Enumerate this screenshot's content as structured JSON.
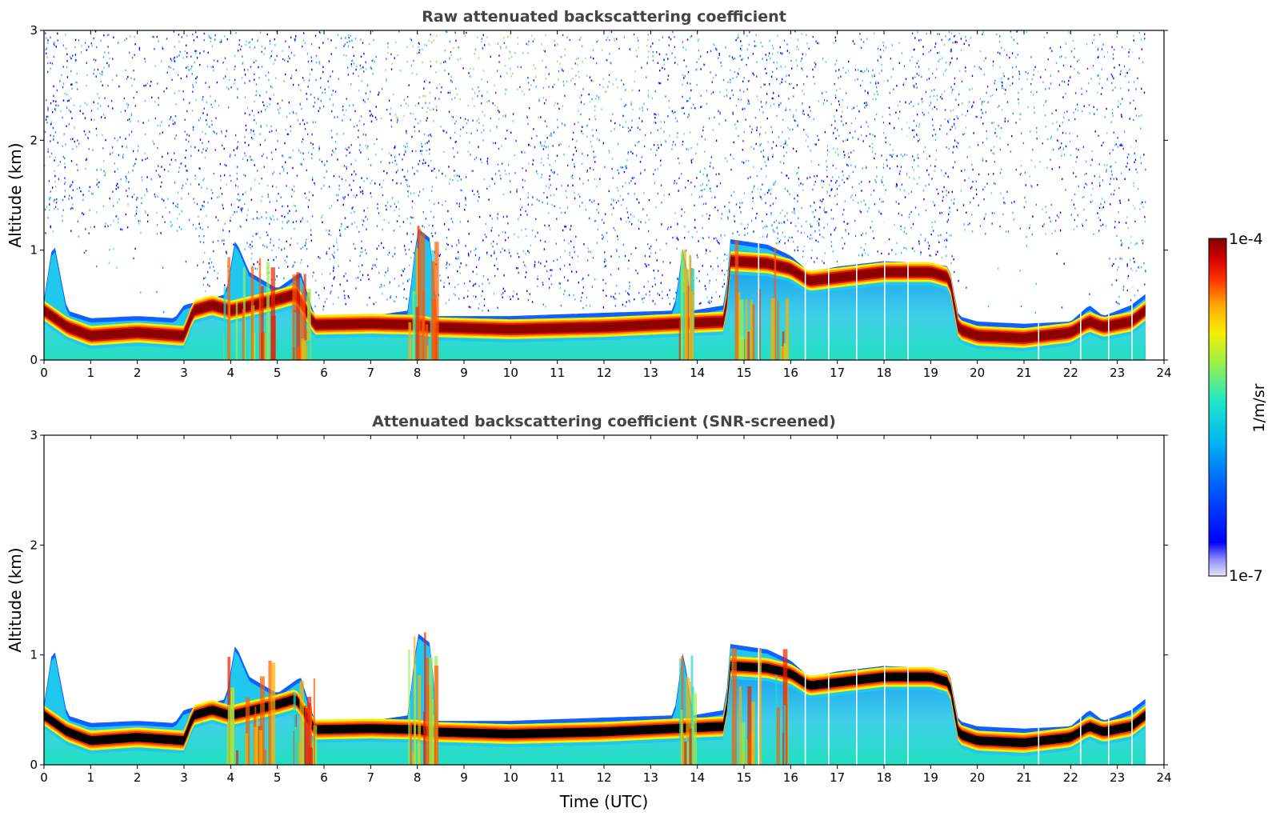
{
  "chart_data": [
    {
      "type": "heatmap",
      "title": "Raw attenuated backscattering coefficient",
      "xlabel": "",
      "ylabel": "Altitude (km)",
      "xlim": [
        0,
        24
      ],
      "ylim": [
        0,
        3
      ],
      "x_ticks": [
        "0",
        "1",
        "2",
        "3",
        "4",
        "5",
        "6",
        "7",
        "8",
        "9",
        "10",
        "11",
        "12",
        "13",
        "14",
        "15",
        "16",
        "17",
        "18",
        "19",
        "20",
        "21",
        "22",
        "23",
        "24"
      ],
      "y_ticks": [
        "0",
        "1",
        "2",
        "3"
      ],
      "data_end_hour": 23.6,
      "layer_top_km": [
        [
          0,
          0.55
        ],
        [
          0.2,
          1.1
        ],
        [
          0.5,
          0.45
        ],
        [
          1,
          0.38
        ],
        [
          2,
          0.4
        ],
        [
          2.8,
          0.38
        ],
        [
          3,
          0.5
        ],
        [
          3.5,
          0.55
        ],
        [
          3.9,
          0.6
        ],
        [
          4.1,
          1.1
        ],
        [
          4.4,
          0.8
        ],
        [
          5,
          0.65
        ],
        [
          5.5,
          0.8
        ],
        [
          5.8,
          0.4
        ],
        [
          7,
          0.4
        ],
        [
          7.8,
          0.45
        ],
        [
          8,
          1.2
        ],
        [
          8.3,
          1.1
        ],
        [
          8.4,
          0.4
        ],
        [
          10,
          0.4
        ],
        [
          12,
          0.43
        ],
        [
          13.5,
          0.45
        ],
        [
          13.7,
          1.05
        ],
        [
          13.9,
          0.45
        ],
        [
          14.6,
          0.5
        ],
        [
          14.7,
          1.1
        ],
        [
          15.5,
          1.05
        ],
        [
          16,
          0.95
        ],
        [
          16.4,
          0.8
        ],
        [
          17,
          0.85
        ],
        [
          18,
          0.9
        ],
        [
          19,
          0.88
        ],
        [
          19.4,
          0.85
        ],
        [
          19.6,
          0.4
        ],
        [
          20,
          0.35
        ],
        [
          21,
          0.33
        ],
        [
          22,
          0.35
        ],
        [
          22.4,
          0.5
        ],
        [
          22.7,
          0.4
        ],
        [
          23.3,
          0.5
        ],
        [
          23.6,
          0.6
        ]
      ],
      "peak_km": [
        [
          0,
          0.45
        ],
        [
          0.5,
          0.3
        ],
        [
          1,
          0.22
        ],
        [
          2,
          0.25
        ],
        [
          3,
          0.22
        ],
        [
          3.2,
          0.45
        ],
        [
          3.6,
          0.5
        ],
        [
          4,
          0.45
        ],
        [
          4.5,
          0.5
        ],
        [
          5,
          0.55
        ],
        [
          5.4,
          0.6
        ],
        [
          5.8,
          0.32
        ],
        [
          7,
          0.33
        ],
        [
          8,
          0.32
        ],
        [
          8.3,
          0.3
        ],
        [
          10,
          0.28
        ],
        [
          12,
          0.3
        ],
        [
          13.5,
          0.33
        ],
        [
          14.6,
          0.35
        ],
        [
          14.7,
          0.9
        ],
        [
          15.5,
          0.88
        ],
        [
          16,
          0.83
        ],
        [
          16.4,
          0.72
        ],
        [
          17,
          0.75
        ],
        [
          18,
          0.8
        ],
        [
          19,
          0.8
        ],
        [
          19.4,
          0.75
        ],
        [
          19.6,
          0.28
        ],
        [
          20,
          0.22
        ],
        [
          21,
          0.2
        ],
        [
          22,
          0.25
        ],
        [
          22.4,
          0.35
        ],
        [
          22.7,
          0.3
        ],
        [
          23.3,
          0.35
        ],
        [
          23.6,
          0.45
        ]
      ],
      "blue_region_hours": [
        16,
        19.4
      ],
      "white_gap_hours": [
        15.3,
        16.3,
        16.8,
        17.4,
        18,
        18.5,
        21.3,
        22.2,
        22.8,
        23.3
      ],
      "colorbar": {
        "label": "1/m/sr",
        "min_label": "1e-7",
        "max_label": "1e-4",
        "scale": "log",
        "colormap": "jet"
      }
    },
    {
      "type": "heatmap",
      "title": "Attenuated backscattering coefficient (SNR-screened)",
      "xlabel": "Time (UTC)",
      "ylabel": "Altitude (km)",
      "xlim": [
        0,
        24
      ],
      "ylim": [
        0,
        3
      ],
      "x_ticks": [
        "0",
        "1",
        "2",
        "3",
        "4",
        "5",
        "6",
        "7",
        "8",
        "9",
        "10",
        "11",
        "12",
        "13",
        "14",
        "15",
        "16",
        "17",
        "18",
        "19",
        "20",
        "21",
        "22",
        "23",
        "24"
      ],
      "y_ticks": [
        "0",
        "1",
        "2",
        "3"
      ],
      "note": "Same vertical structure as the raw panel with low-SNR noise removed; saturated layer peak shown in black."
    }
  ],
  "colors": {
    "title": "#444444",
    "axis": "#000000",
    "saturated": "#000000"
  }
}
